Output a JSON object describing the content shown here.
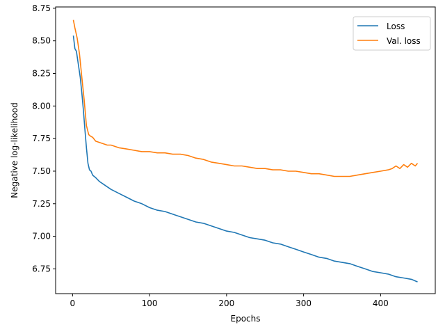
{
  "chart_data": {
    "type": "line",
    "title": "",
    "xlabel": "Epochs",
    "ylabel": "Negative log-likelihood",
    "xlim": [
      -22,
      471
    ],
    "ylim": [
      6.56,
      8.76
    ],
    "x_ticks": [
      0,
      100,
      200,
      300,
      400
    ],
    "y_ticks": [
      6.75,
      7.0,
      7.25,
      7.5,
      7.75,
      8.0,
      8.25,
      8.5,
      8.75
    ],
    "x_tick_labels": [
      "0",
      "100",
      "200",
      "300",
      "400"
    ],
    "y_tick_labels": [
      "6.75",
      "7.00",
      "7.25",
      "7.50",
      "7.75",
      "8.00",
      "8.25",
      "8.50",
      "8.75"
    ],
    "grid": false,
    "legend": {
      "position": "top-right"
    },
    "series": [
      {
        "name": "Loss",
        "color": "#1f77b4",
        "x": [
          1,
          3,
          5,
          8,
          10,
          12,
          14,
          16,
          18,
          20,
          22,
          24,
          26,
          28,
          30,
          35,
          40,
          45,
          50,
          60,
          70,
          80,
          90,
          100,
          110,
          120,
          130,
          140,
          150,
          160,
          170,
          180,
          190,
          200,
          210,
          220,
          230,
          240,
          250,
          260,
          270,
          280,
          290,
          300,
          310,
          320,
          330,
          340,
          350,
          360,
          370,
          380,
          390,
          400,
          410,
          420,
          430,
          440,
          448
        ],
        "y": [
          8.54,
          8.44,
          8.42,
          8.3,
          8.22,
          8.1,
          7.97,
          7.82,
          7.68,
          7.56,
          7.51,
          7.5,
          7.47,
          7.46,
          7.45,
          7.42,
          7.4,
          7.38,
          7.36,
          7.33,
          7.3,
          7.27,
          7.25,
          7.22,
          7.2,
          7.19,
          7.17,
          7.15,
          7.13,
          7.11,
          7.1,
          7.08,
          7.06,
          7.04,
          7.03,
          7.01,
          6.99,
          6.98,
          6.97,
          6.95,
          6.94,
          6.92,
          6.9,
          6.88,
          6.86,
          6.84,
          6.83,
          6.81,
          6.8,
          6.79,
          6.77,
          6.75,
          6.73,
          6.72,
          6.71,
          6.69,
          6.68,
          6.67,
          6.65
        ]
      },
      {
        "name": "Val. loss",
        "color": "#ff7f0e",
        "x": [
          1,
          3,
          6,
          9,
          12,
          15,
          18,
          21,
          23,
          26,
          30,
          35,
          40,
          45,
          50,
          60,
          70,
          80,
          90,
          100,
          110,
          120,
          130,
          140,
          150,
          160,
          170,
          180,
          190,
          200,
          210,
          220,
          230,
          240,
          250,
          260,
          270,
          280,
          290,
          300,
          310,
          320,
          330,
          340,
          350,
          360,
          370,
          380,
          390,
          400,
          410,
          415,
          420,
          425,
          430,
          435,
          440,
          445,
          448
        ],
        "y": [
          8.66,
          8.6,
          8.52,
          8.4,
          8.22,
          8.05,
          7.85,
          7.78,
          7.77,
          7.76,
          7.73,
          7.72,
          7.71,
          7.7,
          7.7,
          7.68,
          7.67,
          7.66,
          7.65,
          7.65,
          7.64,
          7.64,
          7.63,
          7.63,
          7.62,
          7.6,
          7.59,
          7.57,
          7.56,
          7.55,
          7.54,
          7.54,
          7.53,
          7.52,
          7.52,
          7.51,
          7.51,
          7.5,
          7.5,
          7.49,
          7.48,
          7.48,
          7.47,
          7.46,
          7.46,
          7.46,
          7.47,
          7.48,
          7.49,
          7.5,
          7.51,
          7.52,
          7.54,
          7.52,
          7.55,
          7.53,
          7.56,
          7.54,
          7.56
        ]
      }
    ]
  }
}
